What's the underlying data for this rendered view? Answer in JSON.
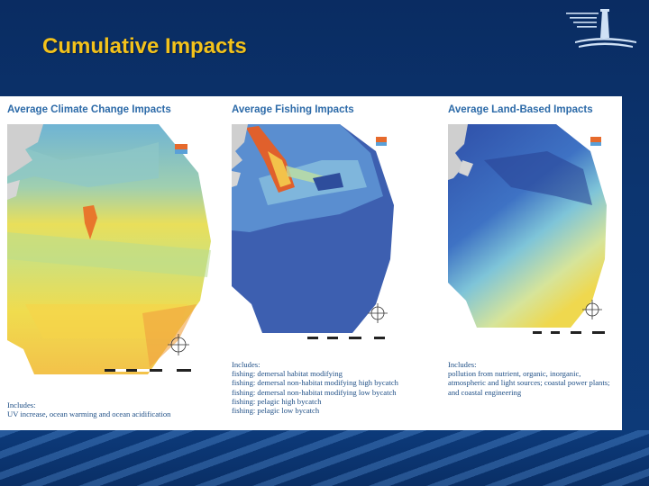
{
  "slide": {
    "title": "Cumulative Impacts"
  },
  "colors": {
    "title": "#f3c21b",
    "panel_title": "#2c6aa8",
    "caption_text": "#1f4f86",
    "slide_background": "#0b2f67"
  },
  "logo": {
    "icon": "lighthouse-icon"
  },
  "panels": [
    {
      "title": "Average Climate Change Impacts",
      "map_icon": "climate-impact-map",
      "includes_label": "Includes:",
      "includes": [
        "UV increase, ocean warming and ocean acidification"
      ]
    },
    {
      "title": "Average Fishing Impacts",
      "map_icon": "fishing-impact-map",
      "includes_label": "Includes:",
      "includes": [
        "fishing: demersal habitat modifying",
        "fishing: demersal non-habitat modifying high bycatch",
        "fishing: demersal non-habitat modifying low bycatch",
        "fishing: pelagic high bycatch",
        "fishing: pelagic low bycatch"
      ]
    },
    {
      "title": "Average Land-Based Impacts",
      "map_icon": "land-based-impact-map",
      "includes_label": "Includes:",
      "includes": [
        "pollution from nutrient, organic, inorganic,",
        "atmospheric and light sources; coastal power plants;",
        "and coastal engineering"
      ]
    }
  ]
}
